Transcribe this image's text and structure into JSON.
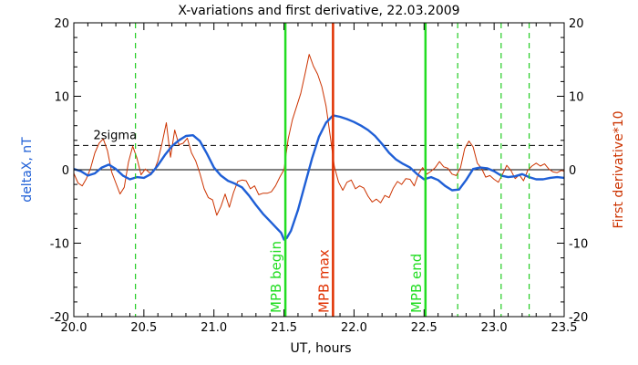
{
  "chart_data": {
    "type": "line",
    "title": "X-variations and first derivative, 22.03.2009",
    "xlabel": "UT, hours",
    "ylabel_left": "deltaX, nT",
    "ylabel_right": "First derivative*10",
    "xlim": [
      20.0,
      23.5
    ],
    "ylim": [
      -20,
      20
    ],
    "x_ticks": [
      20.0,
      20.5,
      21.0,
      21.5,
      22.0,
      22.5,
      23.0,
      23.5
    ],
    "x_tick_labels": [
      "20.0",
      "20.5",
      "21.0",
      "21.5",
      "22.0",
      "22.5",
      "23.0",
      "23.5"
    ],
    "y_ticks": [
      -20,
      -10,
      0,
      10,
      20
    ],
    "y_tick_labels": [
      "-20",
      "-10",
      "0",
      "10",
      "20"
    ],
    "threshold": {
      "label": "2sigma",
      "value": 3.3
    },
    "zero_line": 0,
    "vlines": [
      {
        "x": 20.44,
        "style": "dashed",
        "color": "#22cc22",
        "label": ""
      },
      {
        "x": 21.51,
        "style": "solid",
        "color": "#22dd22",
        "label": "MPB begin"
      },
      {
        "x": 21.85,
        "style": "solid",
        "color": "#e03000",
        "label": "MPB max"
      },
      {
        "x": 22.51,
        "style": "solid",
        "color": "#22dd22",
        "label": "MPB end"
      },
      {
        "x": 22.74,
        "style": "dashed",
        "color": "#22cc22",
        "label": ""
      },
      {
        "x": 23.05,
        "style": "dashed",
        "color": "#22cc22",
        "label": ""
      },
      {
        "x": 23.25,
        "style": "dashed",
        "color": "#22cc22",
        "label": ""
      }
    ],
    "series": [
      {
        "color": "#1f5fd6",
        "axis": "left",
        "x": [
          20.0,
          20.05,
          20.1,
          20.15,
          20.2,
          20.25,
          20.3,
          20.35,
          20.4,
          20.45,
          20.5,
          20.55,
          20.6,
          20.65,
          20.7,
          20.75,
          20.8,
          20.85,
          20.9,
          20.95,
          21.0,
          21.05,
          21.1,
          21.15,
          21.2,
          21.25,
          21.3,
          21.35,
          21.4,
          21.45,
          21.48,
          21.5,
          21.52,
          21.55,
          21.6,
          21.65,
          21.7,
          21.75,
          21.8,
          21.85,
          21.9,
          21.95,
          22.0,
          22.05,
          22.1,
          22.15,
          22.2,
          22.25,
          22.3,
          22.35,
          22.4,
          22.45,
          22.5,
          22.55,
          22.6,
          22.65,
          22.7,
          22.75,
          22.8,
          22.85,
          22.9,
          22.95,
          23.0,
          23.05,
          23.1,
          23.15,
          23.2,
          23.25,
          23.3,
          23.35,
          23.4,
          23.45,
          23.5
        ],
        "y": [
          0.1,
          -0.2,
          -0.8,
          -0.5,
          0.3,
          0.7,
          0.1,
          -0.8,
          -1.3,
          -1.0,
          -1.1,
          -0.6,
          0.6,
          2.0,
          3.2,
          4.0,
          4.6,
          4.7,
          3.9,
          2.2,
          0.3,
          -0.8,
          -1.5,
          -1.9,
          -2.4,
          -3.5,
          -4.8,
          -6.0,
          -7.0,
          -8.0,
          -8.6,
          -9.5,
          -9.3,
          -8.3,
          -5.5,
          -2.0,
          1.5,
          4.5,
          6.4,
          7.4,
          7.2,
          6.9,
          6.5,
          6.0,
          5.4,
          4.6,
          3.5,
          2.3,
          1.4,
          0.8,
          0.3,
          -0.6,
          -1.3,
          -1.0,
          -1.4,
          -2.2,
          -2.8,
          -2.7,
          -1.4,
          0.1,
          0.3,
          0.2,
          -0.2,
          -0.8,
          -1.0,
          -0.9,
          -0.6,
          -1.0,
          -1.3,
          -1.3,
          -1.1,
          -1.0,
          -1.1
        ]
      },
      {
        "color": "#cc3300",
        "axis": "left",
        "x": [
          20.0,
          20.03,
          20.06,
          20.09,
          20.12,
          20.15,
          20.18,
          20.21,
          20.24,
          20.27,
          20.3,
          20.33,
          20.36,
          20.39,
          20.42,
          20.45,
          20.48,
          20.51,
          20.54,
          20.57,
          20.6,
          20.63,
          20.66,
          20.69,
          20.72,
          20.75,
          20.78,
          20.81,
          20.84,
          20.87,
          20.9,
          20.93,
          20.96,
          20.99,
          21.02,
          21.05,
          21.08,
          21.11,
          21.14,
          21.17,
          21.2,
          21.23,
          21.26,
          21.29,
          21.32,
          21.35,
          21.38,
          21.41,
          21.44,
          21.47,
          21.5,
          21.53,
          21.56,
          21.59,
          21.62,
          21.65,
          21.68,
          21.71,
          21.74,
          21.77,
          21.8,
          21.83,
          21.86,
          21.89,
          21.92,
          21.95,
          21.98,
          22.01,
          22.04,
          22.07,
          22.1,
          22.13,
          22.16,
          22.19,
          22.22,
          22.25,
          22.28,
          22.31,
          22.34,
          22.37,
          22.4,
          22.43,
          22.46,
          22.49,
          22.52,
          22.55,
          22.58,
          22.61,
          22.64,
          22.67,
          22.7,
          22.73,
          22.76,
          22.79,
          22.82,
          22.85,
          22.88,
          22.91,
          22.94,
          22.97,
          23.0,
          23.03,
          23.06,
          23.09,
          23.12,
          23.15,
          23.18,
          23.21,
          23.24,
          23.27,
          23.3,
          23.33,
          23.36,
          23.39,
          23.42,
          23.45,
          23.48,
          23.5
        ],
        "y": [
          -0.5,
          -1.8,
          -2.2,
          -1.2,
          0.2,
          2.3,
          3.6,
          4.2,
          2.6,
          -0.3,
          -1.8,
          -3.3,
          -2.4,
          1.0,
          3.2,
          1.6,
          -0.7,
          0.1,
          -0.4,
          -0.3,
          1.2,
          3.6,
          6.4,
          1.7,
          5.4,
          3.4,
          3.6,
          4.3,
          2.3,
          1.2,
          -0.5,
          -2.6,
          -3.8,
          -4.1,
          -6.2,
          -5.0,
          -3.3,
          -5.1,
          -3.1,
          -1.6,
          -1.4,
          -1.5,
          -2.6,
          -2.2,
          -3.4,
          -3.2,
          -3.2,
          -3.0,
          -2.2,
          -1.0,
          0.0,
          4.2,
          6.8,
          8.6,
          10.4,
          13.0,
          15.7,
          14.1,
          13.0,
          11.3,
          8.7,
          4.6,
          0.4,
          -1.7,
          -2.8,
          -1.7,
          -1.4,
          -2.6,
          -2.2,
          -2.5,
          -3.6,
          -4.4,
          -4.0,
          -4.5,
          -3.5,
          -3.8,
          -2.5,
          -1.6,
          -2.0,
          -1.2,
          -1.3,
          -2.2,
          -0.6,
          0.3,
          -0.6,
          -0.2,
          0.3,
          1.1,
          0.4,
          0.2,
          -0.6,
          -0.8,
          0.3,
          2.9,
          3.9,
          3.1,
          0.9,
          0.2,
          -1.0,
          -0.8,
          -1.3,
          -1.7,
          -0.6,
          0.6,
          -0.1,
          -1.2,
          -0.7,
          -1.5,
          -0.1,
          0.5,
          0.9,
          0.5,
          0.8,
          0.1,
          -0.3,
          -0.4,
          -0.1,
          -0.2
        ]
      }
    ]
  }
}
